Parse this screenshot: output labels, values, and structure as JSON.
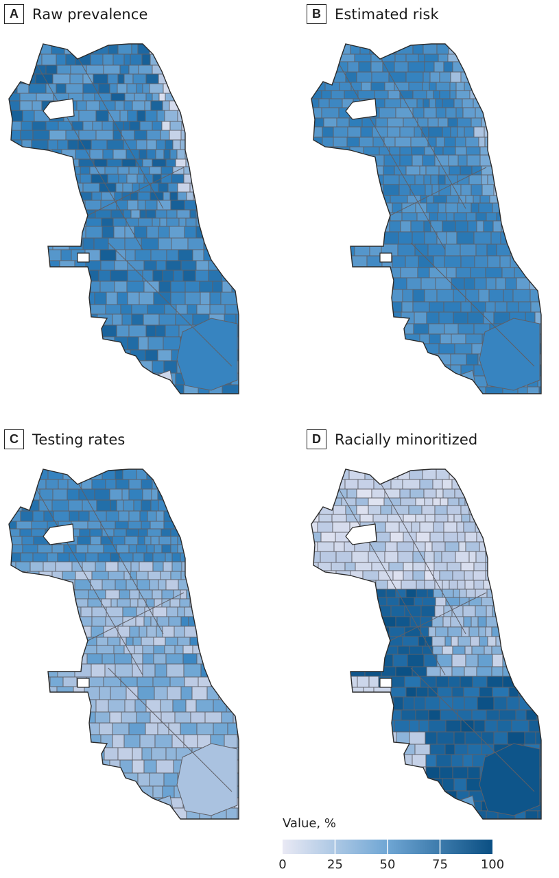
{
  "panels": [
    {
      "letter": "A",
      "title": "Raw prevalence",
      "profile": "prevalence"
    },
    {
      "letter": "B",
      "title": "Estimated risk",
      "profile": "risk"
    },
    {
      "letter": "C",
      "title": "Testing rates",
      "profile": "testing"
    },
    {
      "letter": "D",
      "title": "Racially minoritized",
      "profile": "minoritized"
    }
  ],
  "legend": {
    "title": "Value, %",
    "ticks": [
      "0",
      "25",
      "50",
      "75",
      "100"
    ],
    "min": 0,
    "max": 100,
    "color_low": "#e9e9f4",
    "color_high": "#0a4f83"
  },
  "colors": {
    "outline": "#2b2b2b",
    "grid_lines": "#5f5f66",
    "scale": [
      "#e9e9f4",
      "#b9c9e3",
      "#6fa6d4",
      "#2f7fbd",
      "#0a4f83"
    ]
  }
}
